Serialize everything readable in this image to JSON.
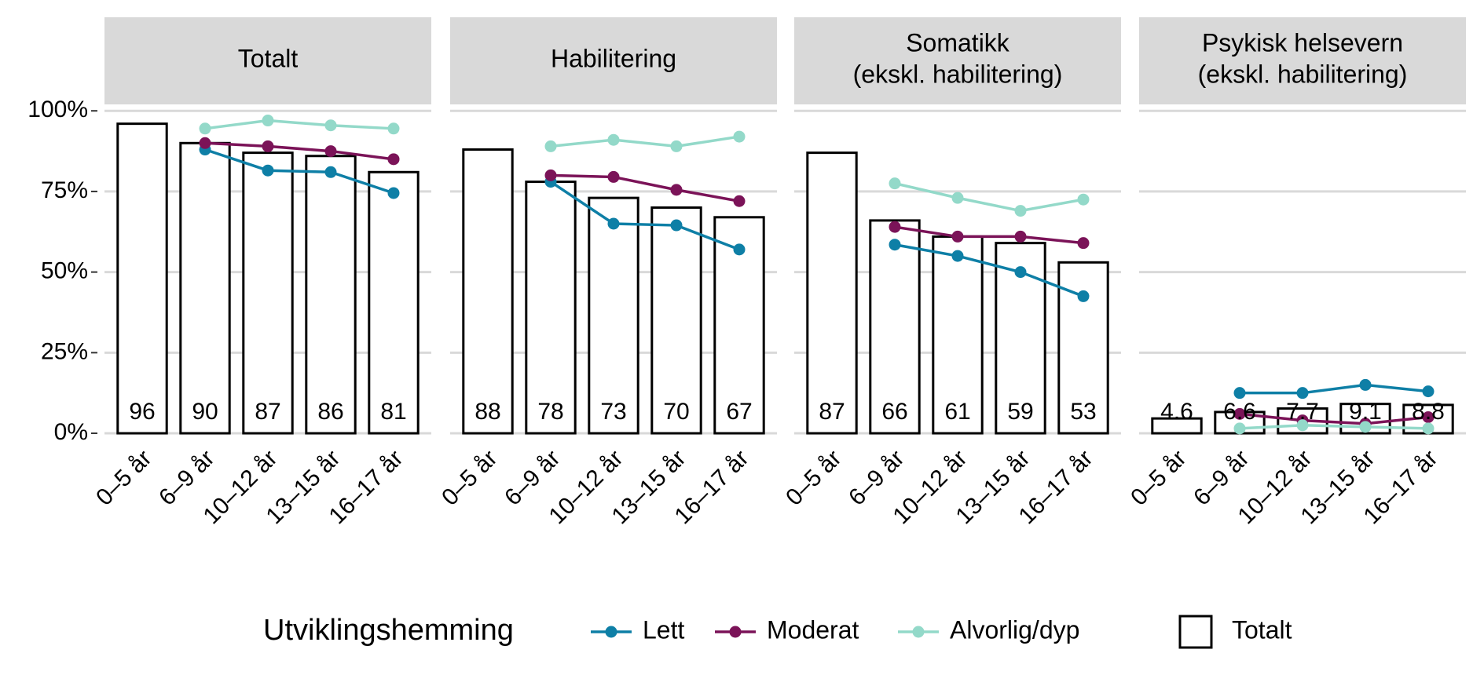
{
  "chart_data": {
    "type": "facet-bar-line",
    "categories": [
      "0–5 år",
      "6–9 år",
      "10–12 år",
      "13–15 år",
      "16–17 år"
    ],
    "ylim": [
      -3.4,
      102
    ],
    "yticks": [
      {
        "value": 0,
        "label": "0%"
      },
      {
        "value": 25,
        "label": "25%"
      },
      {
        "value": 50,
        "label": "50%"
      },
      {
        "value": 75,
        "label": "75%"
      },
      {
        "value": 100,
        "label": "100%"
      }
    ],
    "grid": true,
    "legend_title": "Utviklingshemming",
    "bar_name": "Totalt",
    "series": [
      {
        "name": "Lett",
        "color": "#0e7fa6"
      },
      {
        "name": "Moderat",
        "color": "#7b1358"
      },
      {
        "name": "Alvorlig/dyp",
        "color": "#93d9c9"
      }
    ],
    "facets": [
      {
        "title": [
          "Totalt"
        ],
        "values": [
          96,
          90,
          87,
          86,
          81
        ],
        "series_values": [
          [
            null,
            88,
            81.5,
            81,
            74.5
          ],
          [
            null,
            90,
            89,
            87.5,
            85
          ],
          [
            null,
            94.5,
            97,
            95.5,
            94.5
          ]
        ]
      },
      {
        "title": [
          "Habilitering"
        ],
        "values": [
          88,
          78,
          73,
          70,
          67
        ],
        "series_values": [
          [
            null,
            78,
            65,
            64.5,
            57
          ],
          [
            null,
            80,
            79.5,
            75.5,
            72
          ],
          [
            null,
            89,
            91,
            89,
            92
          ]
        ]
      },
      {
        "title": [
          "Somatikk",
          "(ekskl. habilitering)"
        ],
        "values": [
          87,
          66,
          61,
          59,
          53
        ],
        "series_values": [
          [
            null,
            58.5,
            55,
            50,
            42.5
          ],
          [
            null,
            64,
            61,
            61,
            59
          ],
          [
            null,
            77.5,
            73,
            69,
            72.5
          ]
        ]
      },
      {
        "title": [
          "Psykisk helsevern",
          "(ekskl. habilitering)"
        ],
        "values": [
          4.6,
          6.6,
          7.7,
          9.1,
          8.8
        ],
        "series_values": [
          [
            null,
            12.5,
            12.5,
            15,
            13
          ],
          [
            null,
            6,
            4,
            3,
            5
          ],
          [
            null,
            1.5,
            2.5,
            2,
            1.5
          ]
        ]
      }
    ]
  }
}
